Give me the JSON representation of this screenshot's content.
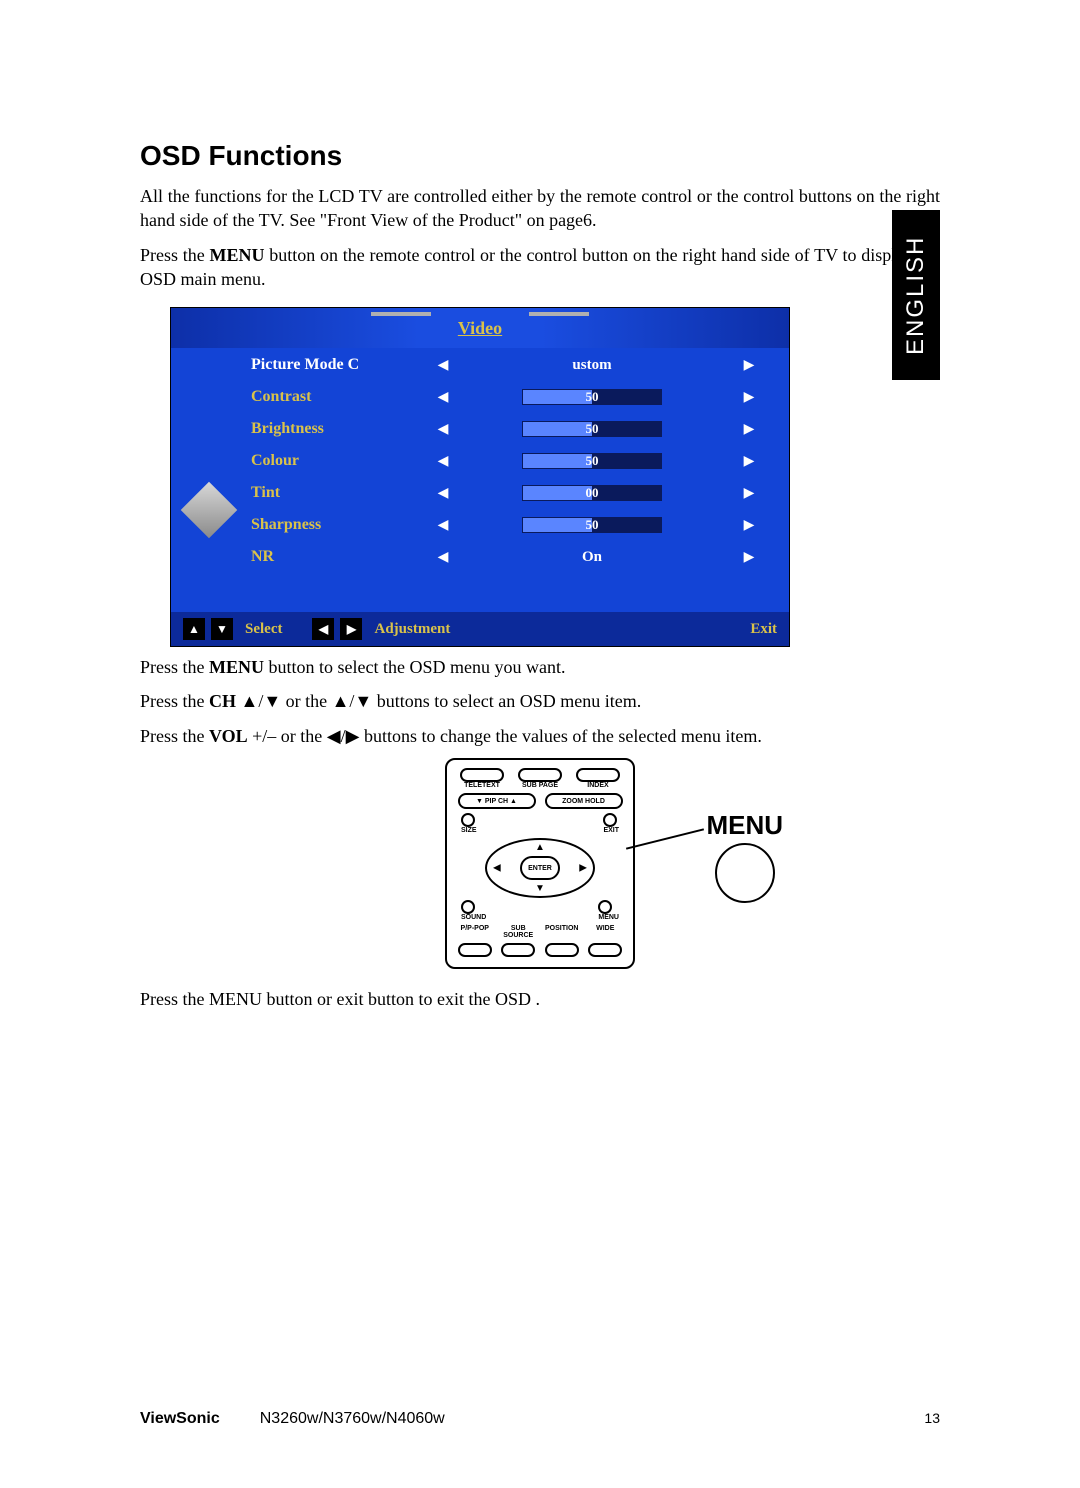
{
  "heading": "OSD Functions",
  "paragraphs": {
    "p1": "All the functions for the LCD TV are controlled either by the remote control or the control buttons on the right hand side of the TV. See \"Front View of the Product\" on page6.",
    "p2_pre": "Press the ",
    "p2_bold": "MENU",
    "p2_post": " button on the remote control or the control button on the right hand side of TV to display the OSD main menu.",
    "p3_pre": "Press the ",
    "p3_bold": "MENU",
    "p3_post": " button to select the OSD menu you want.",
    "p4_pre": "Press the ",
    "p4_bold": "CH",
    "p4_post": " ▲/▼  or the  ▲/▼  buttons to select an OSD menu item.",
    "p5_pre": "Press the ",
    "p5_bold": "VOL",
    "p5_post": " +/– or the ◀/▶ buttons to change the values of the selected menu item.",
    "p6": "Press the MENU button or exit button to exit the OSD ."
  },
  "language_tab": "ENGLISH",
  "osd": {
    "title": "Video",
    "colors": {
      "background": "#1344d6",
      "accent_text": "#d9c24a",
      "active_text": "#ffffff",
      "bar_bg": "#0a1a5c",
      "bar_fill": "#5a85ff",
      "footer_bg": "#0c2a9a"
    },
    "rows": [
      {
        "label": "Picture Mode C",
        "type": "text",
        "value": "ustom",
        "active": true
      },
      {
        "label": "Contrast",
        "type": "bar",
        "value": 50,
        "max": 100
      },
      {
        "label": "Brightness",
        "type": "bar",
        "value": 50,
        "max": 100
      },
      {
        "label": "Colour",
        "type": "bar",
        "value": 50,
        "max": 100
      },
      {
        "label": "Tint",
        "type": "bar",
        "value": 0,
        "display": "00",
        "max": 100,
        "fill_pct": 50
      },
      {
        "label": "Sharpness",
        "type": "bar",
        "value": 50,
        "max": 100
      },
      {
        "label": "NR",
        "type": "text",
        "value": "On"
      }
    ],
    "footer": {
      "select": "Select",
      "adjustment": "Adjustment",
      "exit": "Exit"
    }
  },
  "remote": {
    "top_labels": [
      "TELETEXT",
      "SUB PAGE",
      "INDEX"
    ],
    "pill_left": "▼ PIP  CH ▲",
    "pill_right": "ZOOM  HOLD",
    "side_labels": {
      "left_top": "SIZE",
      "right_top": "EXIT",
      "left_bot": "SOUND",
      "right_bot": "MENU"
    },
    "enter": "ENTER",
    "bottom_labels": [
      "P/P-POP",
      "SUB SOURCE",
      "POSITION",
      "WIDE"
    ],
    "callout": "MENU"
  },
  "footer": {
    "brand": "ViewSonic",
    "models": "N3260w/N3760w/N4060w",
    "page": "13"
  }
}
